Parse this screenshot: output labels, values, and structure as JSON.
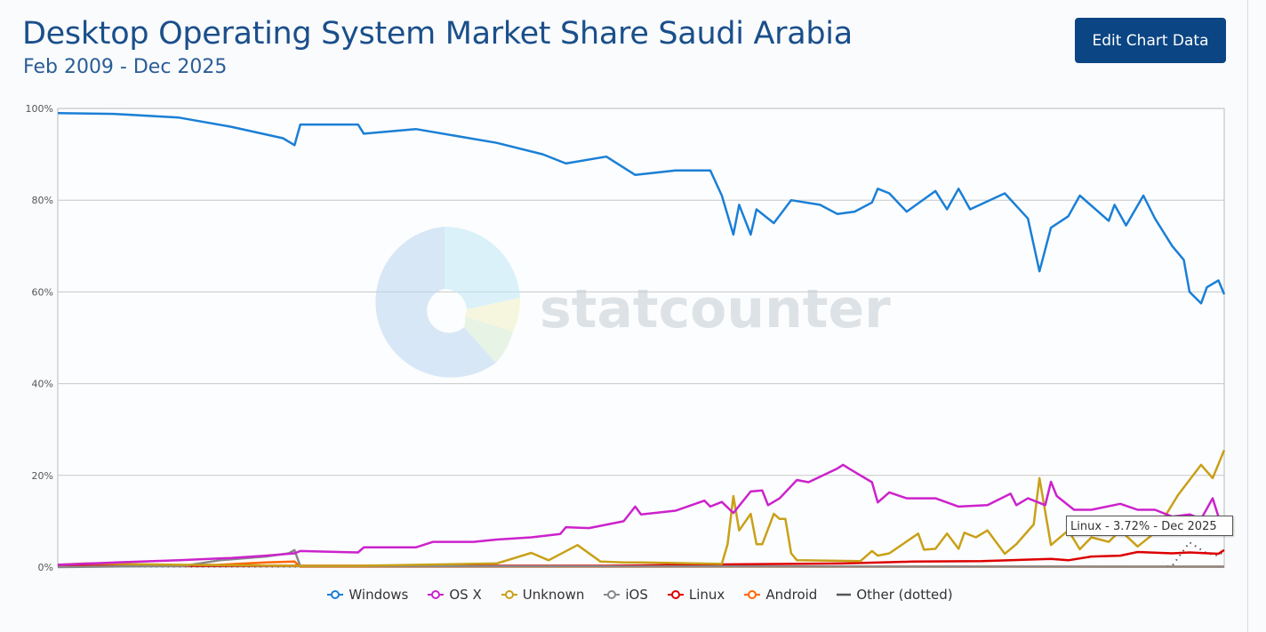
{
  "header": {
    "title": "Desktop Operating System Market Share Saudi Arabia",
    "subtitle": "Feb 2009 - Dec 2025",
    "edit_button": "Edit Chart Data"
  },
  "watermark": {
    "text": "statcounter"
  },
  "tooltip": {
    "text": "Linux - 3.72% - Dec 2025"
  },
  "chart_data": {
    "type": "line",
    "title": "Desktop Operating System Market Share Saudi Arabia",
    "subtitle": "Feb 2009 - Dec 2025",
    "x_range": [
      "2009-02",
      "2025-12"
    ],
    "ylim": [
      0,
      100
    ],
    "y_ticks": [
      "0%",
      "20%",
      "40%",
      "60%",
      "80%",
      "100%"
    ],
    "y_tick_values": [
      0,
      20,
      40,
      60,
      80,
      100
    ],
    "grid": true,
    "legend_position": "bottom",
    "series": [
      {
        "name": "Windows",
        "color": "#1a7fd6",
        "dashed": false,
        "points": [
          [
            "2009-02",
            99
          ],
          [
            "2009-12",
            98.8
          ],
          [
            "2010-11",
            98
          ],
          [
            "2011-08",
            96
          ],
          [
            "2012-05",
            93.5
          ],
          [
            "2012-07",
            92
          ],
          [
            "2012-08",
            96.5
          ],
          [
            "2013-06",
            96.5
          ],
          [
            "2013-07",
            94.5
          ],
          [
            "2014-04",
            95.5
          ],
          [
            "2015-06",
            92.5
          ],
          [
            "2016-02",
            90
          ],
          [
            "2016-06",
            88
          ],
          [
            "2017-01",
            89.5
          ],
          [
            "2017-06",
            85.5
          ],
          [
            "2018-01",
            86.5
          ],
          [
            "2018-07",
            86.5
          ],
          [
            "2018-09",
            81
          ],
          [
            "2018-11",
            72.5
          ],
          [
            "2018-12",
            79
          ],
          [
            "2019-02",
            72.5
          ],
          [
            "2019-03",
            78
          ],
          [
            "2019-06",
            75
          ],
          [
            "2019-09",
            80
          ],
          [
            "2020-02",
            79
          ],
          [
            "2020-05",
            77
          ],
          [
            "2020-08",
            77.5
          ],
          [
            "2020-11",
            79.5
          ],
          [
            "2020-12",
            82.5
          ],
          [
            "2021-02",
            81.5
          ],
          [
            "2021-05",
            77.5
          ],
          [
            "2021-10",
            82
          ],
          [
            "2021-12",
            78
          ],
          [
            "2022-02",
            82.5
          ],
          [
            "2022-04",
            78
          ],
          [
            "2022-10",
            81.5
          ],
          [
            "2023-02",
            76
          ],
          [
            "2023-04",
            64.5
          ],
          [
            "2023-06",
            74
          ],
          [
            "2023-09",
            76.5
          ],
          [
            "2023-11",
            81
          ],
          [
            "2024-04",
            75.5
          ],
          [
            "2024-05",
            79
          ],
          [
            "2024-07",
            74.5
          ],
          [
            "2024-10",
            81
          ],
          [
            "2024-12",
            76
          ],
          [
            "2025-03",
            70
          ],
          [
            "2025-05",
            67
          ],
          [
            "2025-06",
            60
          ],
          [
            "2025-08",
            57.5
          ],
          [
            "2025-09",
            61
          ],
          [
            "2025-11",
            62.5
          ],
          [
            "2025-12",
            59.5
          ]
        ]
      },
      {
        "name": "OS X",
        "color": "#cc22cc",
        "dashed": false,
        "points": [
          [
            "2009-02",
            0.5
          ],
          [
            "2009-12",
            1
          ],
          [
            "2010-11",
            1.5
          ],
          [
            "2011-08",
            2
          ],
          [
            "2012-02",
            2.5
          ],
          [
            "2012-07",
            3
          ],
          [
            "2012-08",
            3.5
          ],
          [
            "2013-06",
            3.2
          ],
          [
            "2013-07",
            4.3
          ],
          [
            "2014-04",
            4.3
          ],
          [
            "2014-07",
            5.5
          ],
          [
            "2015-02",
            5.5
          ],
          [
            "2015-06",
            6
          ],
          [
            "2015-12",
            6.5
          ],
          [
            "2016-05",
            7.2
          ],
          [
            "2016-06",
            8.7
          ],
          [
            "2016-10",
            8.5
          ],
          [
            "2017-04",
            10
          ],
          [
            "2017-06",
            13.2
          ],
          [
            "2017-07",
            11.5
          ],
          [
            "2018-01",
            12.3
          ],
          [
            "2018-06",
            14.5
          ],
          [
            "2018-07",
            13.2
          ],
          [
            "2018-09",
            14.2
          ],
          [
            "2018-11",
            11.8
          ],
          [
            "2019-02",
            16.5
          ],
          [
            "2019-04",
            16.7
          ],
          [
            "2019-05",
            13.5
          ],
          [
            "2019-07",
            15
          ],
          [
            "2019-10",
            19
          ],
          [
            "2019-12",
            18.5
          ],
          [
            "2020-05",
            21.5
          ],
          [
            "2020-06",
            22.3
          ],
          [
            "2020-07",
            21.5
          ],
          [
            "2020-11",
            18.5
          ],
          [
            "2020-12",
            14.1
          ],
          [
            "2021-02",
            16.3
          ],
          [
            "2021-05",
            15
          ],
          [
            "2021-10",
            15
          ],
          [
            "2022-02",
            13.2
          ],
          [
            "2022-07",
            13.5
          ],
          [
            "2022-11",
            16
          ],
          [
            "2022-12",
            13.5
          ],
          [
            "2023-02",
            15
          ],
          [
            "2023-05",
            13.5
          ],
          [
            "2023-06",
            18.6
          ],
          [
            "2023-07",
            15.5
          ],
          [
            "2023-10",
            12.5
          ],
          [
            "2024-01",
            12.5
          ],
          [
            "2024-06",
            13.8
          ],
          [
            "2024-09",
            12.5
          ],
          [
            "2024-12",
            12.5
          ],
          [
            "2025-03",
            11
          ],
          [
            "2025-06",
            11.5
          ],
          [
            "2025-08",
            10.5
          ],
          [
            "2025-10",
            15
          ],
          [
            "2025-11",
            11
          ],
          [
            "2025-12",
            10
          ]
        ]
      },
      {
        "name": "Unknown",
        "color": "#c9a018",
        "dashed": false,
        "points": [
          [
            "2009-02",
            0.5
          ],
          [
            "2009-07",
            0.8
          ],
          [
            "2010-11",
            0.5
          ],
          [
            "2012-07",
            0.3
          ],
          [
            "2013-06",
            0.3
          ],
          [
            "2015-06",
            0.8
          ],
          [
            "2015-12",
            3.1
          ],
          [
            "2016-03",
            1.5
          ],
          [
            "2016-08",
            4.8
          ],
          [
            "2016-12",
            1.2
          ],
          [
            "2017-04",
            1
          ],
          [
            "2017-07",
            1
          ],
          [
            "2018-09",
            0.7
          ],
          [
            "2018-10",
            5
          ],
          [
            "2018-11",
            15.5
          ],
          [
            "2018-12",
            8
          ],
          [
            "2019-02",
            11.6
          ],
          [
            "2019-03",
            5
          ],
          [
            "2019-04",
            5
          ],
          [
            "2019-06",
            11.6
          ],
          [
            "2019-07",
            10.5
          ],
          [
            "2019-08",
            10.5
          ],
          [
            "2019-09",
            3
          ],
          [
            "2019-10",
            1.5
          ],
          [
            "2020-09",
            1.3
          ],
          [
            "2020-11",
            3.5
          ],
          [
            "2020-12",
            2.5
          ],
          [
            "2021-02",
            3
          ],
          [
            "2021-07",
            7.3
          ],
          [
            "2021-08",
            3.8
          ],
          [
            "2021-10",
            4
          ],
          [
            "2021-12",
            7.3
          ],
          [
            "2022-02",
            4
          ],
          [
            "2022-03",
            7.5
          ],
          [
            "2022-05",
            6.5
          ],
          [
            "2022-07",
            8
          ],
          [
            "2022-10",
            2.9
          ],
          [
            "2022-12",
            5
          ],
          [
            "2023-03",
            9.3
          ],
          [
            "2023-04",
            19.4
          ],
          [
            "2023-06",
            4.8
          ],
          [
            "2023-09",
            8
          ],
          [
            "2023-11",
            3.9
          ],
          [
            "2024-01",
            6.5
          ],
          [
            "2024-04",
            5.5
          ],
          [
            "2024-06",
            8
          ],
          [
            "2024-09",
            4.5
          ],
          [
            "2024-12",
            7.5
          ],
          [
            "2025-04",
            15.7
          ],
          [
            "2025-08",
            22.3
          ],
          [
            "2025-10",
            19.4
          ],
          [
            "2025-12",
            25.5
          ]
        ]
      },
      {
        "name": "iOS",
        "color": "#888888",
        "dashed": false,
        "points": [
          [
            "2009-02",
            0
          ],
          [
            "2010-12",
            0.3
          ],
          [
            "2011-06",
            1.5
          ],
          [
            "2012-02",
            2.3
          ],
          [
            "2012-06",
            3
          ],
          [
            "2012-07",
            3.7
          ],
          [
            "2012-08",
            0.2
          ],
          [
            "2025-12",
            0.1
          ]
        ]
      },
      {
        "name": "Linux",
        "color": "#dd0000",
        "dashed": false,
        "points": [
          [
            "2009-02",
            0.3
          ],
          [
            "2017-01",
            0.3
          ],
          [
            "2018-11",
            0.6
          ],
          [
            "2020-06",
            0.8
          ],
          [
            "2021-06",
            1.2
          ],
          [
            "2022-06",
            1.3
          ],
          [
            "2023-06",
            1.8
          ],
          [
            "2023-09",
            1.5
          ],
          [
            "2024-01",
            2.3
          ],
          [
            "2024-06",
            2.5
          ],
          [
            "2024-09",
            3.3
          ],
          [
            "2025-03",
            3
          ],
          [
            "2025-06",
            3.2
          ],
          [
            "2025-11",
            2.9
          ],
          [
            "2025-12",
            3.72
          ]
        ]
      },
      {
        "name": "Android",
        "color": "#ff6600",
        "dashed": false,
        "points": [
          [
            "2009-02",
            0.2
          ],
          [
            "2011-06",
            0.5
          ],
          [
            "2012-02",
            1
          ],
          [
            "2012-07",
            1.2
          ],
          [
            "2012-08",
            0.1
          ],
          [
            "2025-12",
            0.1
          ]
        ]
      },
      {
        "name": "Other (dotted)",
        "color": "#555555",
        "dashed": true,
        "points": [
          [
            "2009-02",
            0.1
          ],
          [
            "2025-01",
            0.1
          ],
          [
            "2025-03",
            0.3
          ],
          [
            "2025-06",
            5.4
          ],
          [
            "2025-09",
            3
          ],
          [
            "2025-11",
            2.5
          ],
          [
            "2025-12",
            3.5
          ]
        ]
      }
    ]
  }
}
